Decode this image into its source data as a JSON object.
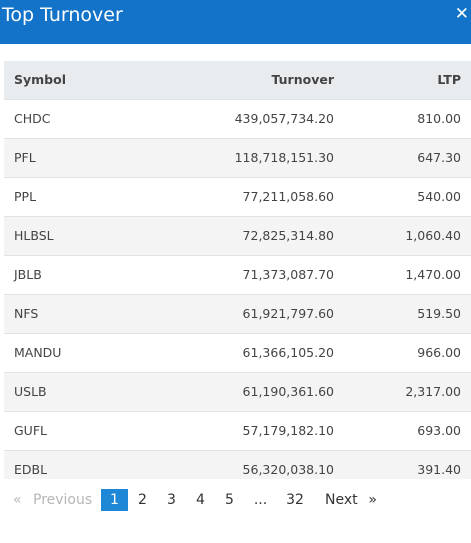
{
  "modal": {
    "title": "Top Turnover",
    "close_icon": "close-icon",
    "accent_color": "#1273c9"
  },
  "table": {
    "headers": [
      "Symbol",
      "Turnover",
      "LTP"
    ],
    "rows": [
      {
        "symbol": "CHDC",
        "turnover": "439,057,734.20",
        "ltp": "810.00"
      },
      {
        "symbol": "PFL",
        "turnover": "118,718,151.30",
        "ltp": "647.30"
      },
      {
        "symbol": "PPL",
        "turnover": "77,211,058.60",
        "ltp": "540.00"
      },
      {
        "symbol": "HLBSL",
        "turnover": "72,825,314.80",
        "ltp": "1,060.40"
      },
      {
        "symbol": "JBLB",
        "turnover": "71,373,087.70",
        "ltp": "1,470.00"
      },
      {
        "symbol": "NFS",
        "turnover": "61,921,797.60",
        "ltp": "519.50"
      },
      {
        "symbol": "MANDU",
        "turnover": "61,366,105.20",
        "ltp": "966.00"
      },
      {
        "symbol": "USLB",
        "turnover": "61,190,361.60",
        "ltp": "2,317.00"
      },
      {
        "symbol": "GUFL",
        "turnover": "57,179,182.10",
        "ltp": "693.00"
      },
      {
        "symbol": "EDBL",
        "turnover": "56,320,038.10",
        "ltp": "391.40"
      }
    ]
  },
  "pagination": {
    "prev_arrow": "«",
    "prev_label": "Previous",
    "pages": [
      "1",
      "2",
      "3",
      "4",
      "5",
      "...",
      "32"
    ],
    "current_page": "1",
    "next_label": "Next",
    "next_arrow": "»",
    "active_color": "#1e88d7"
  }
}
